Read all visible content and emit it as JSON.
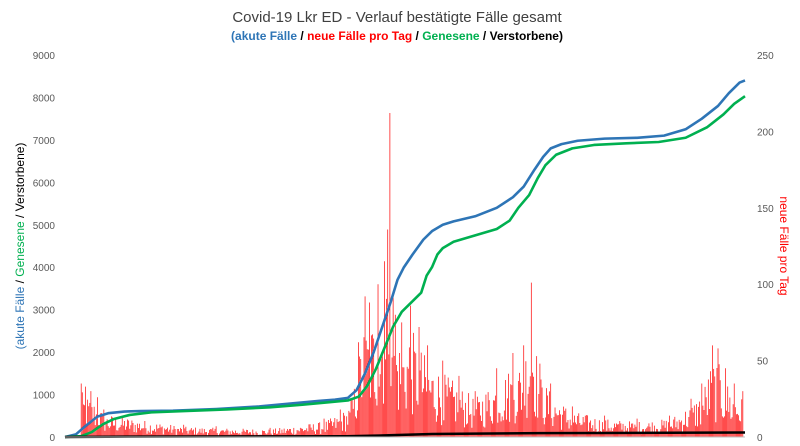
{
  "chart_data": {
    "type": "line",
    "title": "Covid-19 Lkr ED - Verlauf bestätigte Fälle gesamt",
    "subtitle": {
      "open": "(",
      "parts": [
        {
          "text": "akute Fälle",
          "color": "#2E75B6"
        },
        {
          "text": " / ",
          "color": "#000000"
        },
        {
          "text": "neue Fälle pro Tag",
          "color": "#FF0000"
        },
        {
          "text": " / ",
          "color": "#000000"
        },
        {
          "text": "Genesene",
          "color": "#00B050"
        },
        {
          "text": " / ",
          "color": "#000000"
        },
        {
          "text": "Verstorbene",
          "color": "#000000"
        }
      ],
      "close": ")"
    },
    "ylabel_left": {
      "open": "(",
      "parts": [
        {
          "text": "akute Fälle",
          "color": "#2E75B6"
        },
        {
          "text": " / ",
          "color": "#000000"
        },
        {
          "text": "Genesene",
          "color": "#00B050"
        },
        {
          "text": " / ",
          "color": "#000000"
        },
        {
          "text": "Verstorbene",
          "color": "#000000"
        }
      ],
      "close": ")"
    },
    "ylabel_right": {
      "text": "neue Fälle pro Tag",
      "color": "#FF0000"
    },
    "ylim_left": [
      0,
      9000
    ],
    "ylim_right": [
      0,
      250
    ],
    "yticks_left": [
      "0",
      "1000",
      "2000",
      "3000",
      "4000",
      "5000",
      "6000",
      "7000",
      "8000",
      "9000"
    ],
    "yticks_right": [
      "0",
      "50",
      "100",
      "150",
      "200",
      "250"
    ],
    "grid": false,
    "n_days": 630,
    "series": [
      {
        "name": "akute Fälle",
        "axis": "left",
        "color": "#2E75B6",
        "points": [
          [
            0,
            0
          ],
          [
            10,
            60
          ],
          [
            20,
            280
          ],
          [
            30,
            480
          ],
          [
            40,
            560
          ],
          [
            55,
            600
          ],
          [
            70,
            610
          ],
          [
            100,
            620
          ],
          [
            140,
            660
          ],
          [
            180,
            720
          ],
          [
            210,
            790
          ],
          [
            235,
            850
          ],
          [
            250,
            880
          ],
          [
            262,
            920
          ],
          [
            270,
            1100
          ],
          [
            278,
            1500
          ],
          [
            286,
            2000
          ],
          [
            294,
            2600
          ],
          [
            302,
            3200
          ],
          [
            308,
            3700
          ],
          [
            314,
            4000
          ],
          [
            322,
            4300
          ],
          [
            332,
            4650
          ],
          [
            340,
            4850
          ],
          [
            350,
            5000
          ],
          [
            360,
            5080
          ],
          [
            380,
            5200
          ],
          [
            400,
            5400
          ],
          [
            415,
            5650
          ],
          [
            425,
            5900
          ],
          [
            435,
            6300
          ],
          [
            443,
            6600
          ],
          [
            450,
            6800
          ],
          [
            460,
            6900
          ],
          [
            475,
            6980
          ],
          [
            500,
            7030
          ],
          [
            530,
            7050
          ],
          [
            555,
            7100
          ],
          [
            575,
            7250
          ],
          [
            590,
            7500
          ],
          [
            605,
            7800
          ],
          [
            615,
            8100
          ],
          [
            625,
            8350
          ],
          [
            630,
            8400
          ]
        ]
      },
      {
        "name": "Genesene",
        "axis": "left",
        "color": "#00B050",
        "points": [
          [
            0,
            0
          ],
          [
            15,
            20
          ],
          [
            25,
            120
          ],
          [
            35,
            300
          ],
          [
            45,
            420
          ],
          [
            60,
            520
          ],
          [
            80,
            580
          ],
          [
            110,
            610
          ],
          [
            150,
            650
          ],
          [
            190,
            700
          ],
          [
            220,
            760
          ],
          [
            245,
            820
          ],
          [
            262,
            860
          ],
          [
            272,
            950
          ],
          [
            280,
            1200
          ],
          [
            288,
            1600
          ],
          [
            296,
            2100
          ],
          [
            304,
            2600
          ],
          [
            312,
            2950
          ],
          [
            322,
            3200
          ],
          [
            330,
            3400
          ],
          [
            335,
            3800
          ],
          [
            340,
            4000
          ],
          [
            345,
            4300
          ],
          [
            350,
            4450
          ],
          [
            360,
            4600
          ],
          [
            380,
            4750
          ],
          [
            400,
            4900
          ],
          [
            412,
            5100
          ],
          [
            420,
            5400
          ],
          [
            430,
            5700
          ],
          [
            438,
            6100
          ],
          [
            445,
            6400
          ],
          [
            455,
            6650
          ],
          [
            470,
            6800
          ],
          [
            490,
            6880
          ],
          [
            520,
            6920
          ],
          [
            550,
            6950
          ],
          [
            575,
            7050
          ],
          [
            595,
            7300
          ],
          [
            610,
            7600
          ],
          [
            620,
            7850
          ],
          [
            630,
            8030
          ]
        ]
      },
      {
        "name": "Verstorbene",
        "axis": "left",
        "color": "#000000",
        "points": [
          [
            0,
            0
          ],
          [
            60,
            8
          ],
          [
            120,
            12
          ],
          [
            200,
            15
          ],
          [
            260,
            18
          ],
          [
            300,
            40
          ],
          [
            340,
            70
          ],
          [
            380,
            80
          ],
          [
            440,
            90
          ],
          [
            500,
            95
          ],
          [
            560,
            100
          ],
          [
            630,
            105
          ]
        ]
      }
    ],
    "bars": {
      "name": "neue Fälle pro Tag",
      "axis": "right",
      "color": "#FF0000",
      "peaks": [
        [
          15,
          35
        ],
        [
          19,
          33
        ],
        [
          24,
          30
        ],
        [
          30,
          26
        ],
        [
          36,
          18
        ],
        [
          110,
          8
        ],
        [
          140,
          7
        ],
        [
          190,
          6
        ],
        [
          240,
          12
        ],
        [
          255,
          18
        ],
        [
          265,
          25
        ],
        [
          272,
          62
        ],
        [
          278,
          92
        ],
        [
          282,
          88
        ],
        [
          290,
          100
        ],
        [
          296,
          115
        ],
        [
          301,
          212
        ],
        [
          306,
          80
        ],
        [
          312,
          75
        ],
        [
          320,
          86
        ],
        [
          328,
          72
        ],
        [
          336,
          60
        ],
        [
          350,
          50
        ],
        [
          365,
          40
        ],
        [
          380,
          30
        ],
        [
          400,
          45
        ],
        [
          415,
          55
        ],
        [
          425,
          60
        ],
        [
          432,
          101
        ],
        [
          440,
          48
        ],
        [
          450,
          35
        ],
        [
          470,
          20
        ],
        [
          500,
          14
        ],
        [
          530,
          12
        ],
        [
          560,
          14
        ],
        [
          580,
          25
        ],
        [
          590,
          35
        ],
        [
          600,
          60
        ],
        [
          605,
          58
        ],
        [
          612,
          45
        ],
        [
          620,
          35
        ],
        [
          628,
          30
        ]
      ]
    }
  }
}
